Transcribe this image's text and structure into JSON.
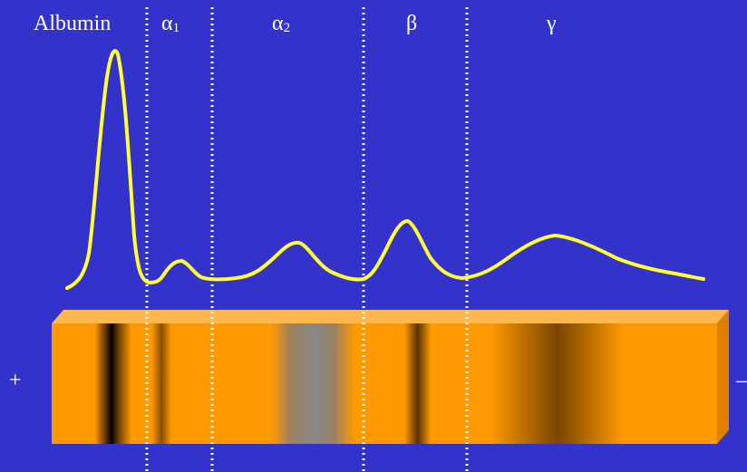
{
  "fractions": [
    {
      "name": "Albumin",
      "sub": ""
    },
    {
      "name": "α",
      "sub": "1"
    },
    {
      "name": "α",
      "sub": "2"
    },
    {
      "name": "β",
      "sub": ""
    },
    {
      "name": "γ",
      "sub": ""
    }
  ],
  "poles": {
    "anode": "+",
    "cathode": "–"
  },
  "colors": {
    "background": "#3333cc",
    "trace": "#ffff33",
    "gel": "#ff9900",
    "gel_top": "#ffb84d",
    "gel_side": "#e07f00",
    "divider": "#ffffff"
  }
}
